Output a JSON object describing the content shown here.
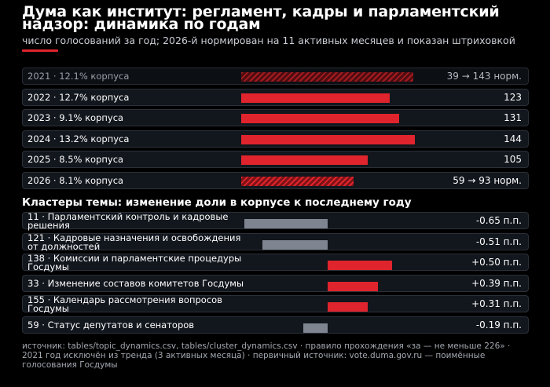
{
  "header": {
    "title": "Дума как институт: регламент, кадры и парламентский надзор: динамика по годам",
    "subtitle": "число голосований за год; 2026-й нормирован на 11 активных месяцев и показан штриховкой",
    "accent_color": "#e0242d"
  },
  "chart_data": [
    {
      "type": "bar",
      "orientation": "horizontal",
      "title": "Дума как институт: регламент, кадры и парламентский надзор: динамика по годам",
      "subtitle": "число голосований за год; 2026-й нормирован на 11 активных месяцев и показан штриховкой",
      "xlim": [
        0,
        144
      ],
      "series_color": "#e0242d",
      "rows": [
        {
          "label": "2021 · 12.1% корпуса",
          "value": 143,
          "display": "39 → 143 норм.",
          "style": "hatched",
          "faded": true
        },
        {
          "label": "2022 · 12.7% корпуса",
          "value": 123,
          "display": "123",
          "style": "solid",
          "faded": false
        },
        {
          "label": "2023 · 9.1% корпуса",
          "value": 131,
          "display": "131",
          "style": "solid",
          "faded": false
        },
        {
          "label": "2024 · 13.2% корпуса",
          "value": 144,
          "display": "144",
          "style": "solid",
          "faded": false
        },
        {
          "label": "2025 · 8.5% корпуса",
          "value": 105,
          "display": "105",
          "style": "solid",
          "faded": false
        },
        {
          "label": "2026 · 8.1% корпуса",
          "value": 93,
          "display": "59 → 93 норм.",
          "style": "hatched",
          "faded": false
        }
      ]
    },
    {
      "type": "bar",
      "orientation": "horizontal-diverging",
      "title": "Кластеры темы: изменение доли в корпусе к последнему году",
      "xlim": [
        -0.65,
        0.65
      ],
      "positive_color": "#e0242d",
      "negative_color": "#7e8591",
      "rows": [
        {
          "label": "11 · Парламентский контроль и кадровые решения",
          "value": -0.65,
          "display": "-0.65 п.п."
        },
        {
          "label": "121 · Кадровые назначения и освобождения от должностей",
          "value": -0.51,
          "display": "-0.51 п.п."
        },
        {
          "label": "138 · Комиссии и парламентские процедуры Госдумы",
          "value": 0.5,
          "display": "+0.50 п.п."
        },
        {
          "label": "33 · Изменение составов комитетов Госдумы",
          "value": 0.39,
          "display": "+0.39 п.п."
        },
        {
          "label": "155 · Календарь рассмотрения вопросов Госдумы",
          "value": 0.31,
          "display": "+0.31 п.п."
        },
        {
          "label": "59 · Статус депутатов и сенаторов",
          "value": -0.19,
          "display": "-0.19 п.п."
        }
      ]
    }
  ],
  "footer": {
    "source": "источник: tables/topic_dynamics.csv, tables/cluster_dynamics.csv · правило прохождения «за — не меньше 226» · 2021 год исключён из тренда (3 активных месяца) · первичный источник: vote.duma.gov.ru — поимённые голосования Госдумы"
  }
}
